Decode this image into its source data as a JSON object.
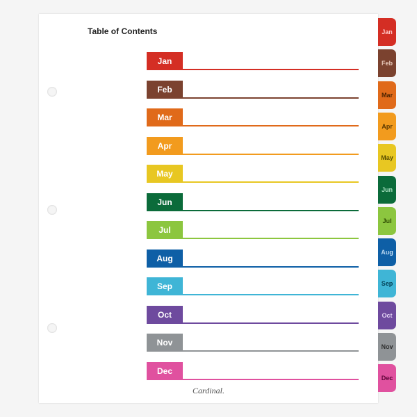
{
  "title": "Table of Contents",
  "brand": "Cardinal.",
  "page_background": "#ffffff",
  "body_background": "#f5f5f5",
  "holes": [
    105,
    275,
    445
  ],
  "row_height": 40.5,
  "tab_height": 40,
  "tab_overlap": 3,
  "months": [
    {
      "label": "Jan",
      "color": "#d42e24",
      "text": "#ffffff",
      "tab_text": "#ffcccc"
    },
    {
      "label": "Feb",
      "color": "#7b422f",
      "text": "#ffffff",
      "tab_text": "#e8c9bb"
    },
    {
      "label": "Mar",
      "color": "#e06a1a",
      "text": "#ffffff",
      "tab_text": "#4a2200"
    },
    {
      "label": "Apr",
      "color": "#f29b1e",
      "text": "#ffffff",
      "tab_text": "#5a3800"
    },
    {
      "label": "May",
      "color": "#e8c722",
      "text": "#ffffff",
      "tab_text": "#5a4e00"
    },
    {
      "label": "Jun",
      "color": "#0b6b3a",
      "text": "#ffffff",
      "tab_text": "#a8e0c0"
    },
    {
      "label": "Jul",
      "color": "#8cc63f",
      "text": "#ffffff",
      "tab_text": "#2d4a00"
    },
    {
      "label": "Aug",
      "color": "#0e5fa6",
      "text": "#ffffff",
      "tab_text": "#bcd9f2"
    },
    {
      "label": "Sep",
      "color": "#3fb5d6",
      "text": "#ffffff",
      "tab_text": "#003d52"
    },
    {
      "label": "Oct",
      "color": "#6e4a9e",
      "text": "#ffffff",
      "tab_text": "#e0d0f2"
    },
    {
      "label": "Nov",
      "color": "#8f9396",
      "text": "#ffffff",
      "tab_text": "#2e2e2e"
    },
    {
      "label": "Dec",
      "color": "#e0519f",
      "text": "#ffffff",
      "tab_text": "#5a0034"
    }
  ]
}
